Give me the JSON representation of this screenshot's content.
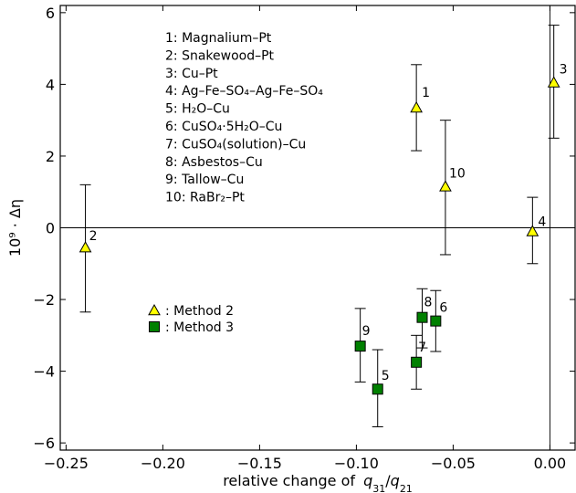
{
  "chart_data": {
    "type": "scatter",
    "xlabel": "relative change of",
    "xlabel_math": "q31/q21",
    "ylabel": "10⁹ · Δη",
    "xlim": [
      -0.253,
      0.013
    ],
    "ylim": [
      -6.2,
      6.2
    ],
    "x_ticks": [
      -0.25,
      -0.2,
      -0.15,
      -0.1,
      -0.05,
      0.0
    ],
    "x_tick_labels": [
      "−0.25",
      "−0.20",
      "−0.15",
      "−0.10",
      "−0.05",
      "0.00"
    ],
    "y_ticks": [
      -6,
      -4,
      -2,
      0,
      2,
      4,
      6
    ],
    "y_tick_labels": [
      "−6",
      "−4",
      "−2",
      "0",
      "2",
      "4",
      "6"
    ],
    "reference_lines": {
      "horizontal_y": 0,
      "vertical_x": 0
    },
    "annotation_list": [
      "1: Magnalium–Pt",
      "2: Snakewood–Pt",
      "3: Cu–Pt",
      "4: Ag–Fe–SO₄–Ag–Fe–SO₄",
      "5: H₂O–Cu",
      "6: CuSO₄·5H₂O–Cu",
      "7: CuSO₄(solution)–Cu",
      "8: Asbestos–Cu",
      "9: Tallow–Cu",
      "10: RaBr₂–Pt"
    ],
    "legend": {
      "placement": "center-left",
      "entries": [
        {
          "label": ": Method 2",
          "marker": "triangle",
          "color": "#ffff00"
        },
        {
          "label": ": Method 3",
          "marker": "square",
          "color": "#008000"
        }
      ]
    },
    "series": [
      {
        "name": "Method 2",
        "marker": "triangle",
        "color": "#ffff00",
        "points": [
          {
            "label": "1",
            "x": -0.069,
            "y": 3.35,
            "err_lo": 2.15,
            "err_hi": 4.55
          },
          {
            "label": "2",
            "x": -0.24,
            "y": -0.55,
            "err_lo": -2.35,
            "err_hi": 1.2
          },
          {
            "label": "3",
            "x": 0.002,
            "y": 4.05,
            "err_lo": 2.5,
            "err_hi": 5.65
          },
          {
            "label": "4",
            "x": -0.009,
            "y": -0.1,
            "err_lo": -1.0,
            "err_hi": 0.85
          },
          {
            "label": "10",
            "x": -0.054,
            "y": 1.15,
            "err_lo": -0.75,
            "err_hi": 3.0
          }
        ]
      },
      {
        "name": "Method 3",
        "marker": "square",
        "color": "#008000",
        "points": [
          {
            "label": "5",
            "x": -0.089,
            "y": -4.5,
            "err_lo": -5.55,
            "err_hi": -3.4
          },
          {
            "label": "6",
            "x": -0.059,
            "y": -2.6,
            "err_lo": -3.45,
            "err_hi": -1.75
          },
          {
            "label": "7",
            "x": -0.069,
            "y": -3.75,
            "err_lo": -4.5,
            "err_hi": -3.0
          },
          {
            "label": "8",
            "x": -0.066,
            "y": -2.5,
            "err_lo": -3.35,
            "err_hi": -1.7
          },
          {
            "label": "9",
            "x": -0.098,
            "y": -3.3,
            "err_lo": -4.3,
            "err_hi": -2.25
          }
        ]
      }
    ]
  }
}
